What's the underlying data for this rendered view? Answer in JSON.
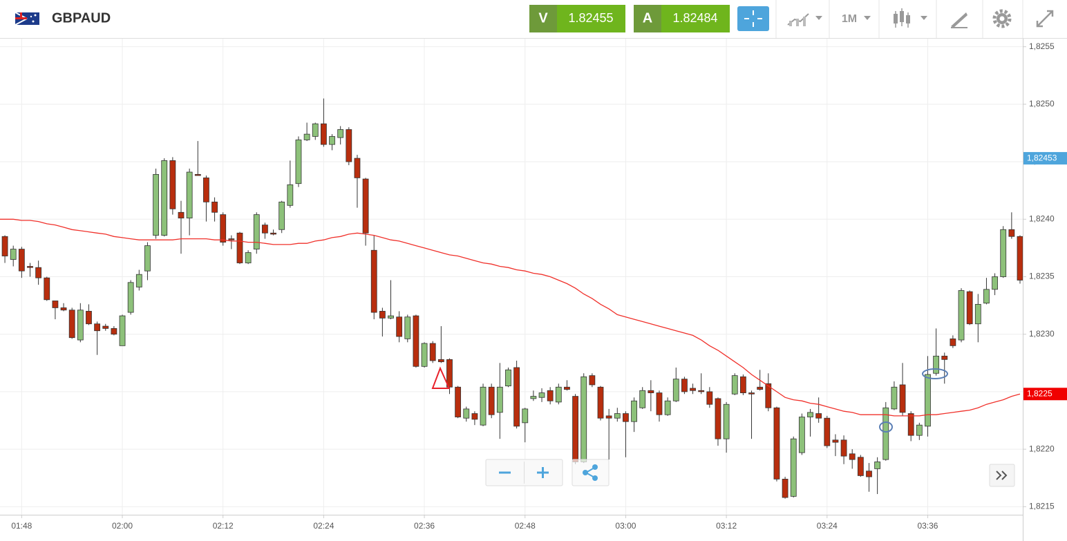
{
  "header": {
    "symbol": "GBPAUD",
    "sell_label": "V",
    "sell_price": "1.82455",
    "buy_label": "A",
    "buy_price": "1.82484",
    "timeframe": "1M"
  },
  "chart_data": {
    "type": "candlestick",
    "categories": [
      null,
      null,
      "01:48",
      null,
      null,
      null,
      null,
      null,
      null,
      null,
      null,
      null,
      null,
      null,
      "02:00",
      null,
      null,
      null,
      null,
      null,
      null,
      null,
      null,
      null,
      null,
      null,
      "02:12",
      null,
      null,
      null,
      null,
      null,
      null,
      null,
      null,
      null,
      null,
      null,
      "02:24",
      null,
      null,
      null,
      null,
      null,
      null,
      null,
      null,
      null,
      null,
      null,
      "02:36",
      null,
      null,
      null,
      null,
      null,
      null,
      null,
      null,
      null,
      null,
      null,
      "02:48",
      null,
      null,
      null,
      null,
      null,
      null,
      null,
      null,
      null,
      null,
      null,
      "03:00",
      null,
      null,
      null,
      null,
      null,
      null,
      null,
      null,
      null,
      null,
      null,
      "03:12",
      null,
      null,
      null,
      null,
      null,
      null,
      null,
      null,
      null,
      null,
      null,
      "03:24",
      null,
      null,
      null,
      null,
      null,
      null,
      null,
      null,
      null,
      null,
      null,
      "03:36",
      null,
      null,
      null,
      null,
      null,
      null,
      null,
      null,
      null,
      null,
      null
    ],
    "candles": {
      "open": [
        1.82385,
        1.82365,
        1.82374,
        1.82359,
        1.82358,
        1.82349,
        1.82329,
        1.82323,
        1.82321,
        1.82295,
        1.8232,
        1.82309,
        1.82307,
        1.82305,
        1.8229,
        1.82319,
        1.82341,
        1.82355,
        1.82386,
        1.82386,
        1.82451,
        1.82406,
        1.82401,
        1.82439,
        1.82436,
        1.82415,
        1.82404,
        1.82383,
        1.82388,
        1.82362,
        1.82374,
        1.82395,
        1.82388,
        1.82391,
        1.82412,
        1.82431,
        1.82469,
        1.82472,
        1.82483,
        1.82465,
        1.82471,
        1.82478,
        1.82453,
        1.82435,
        1.82373,
        1.8232,
        1.82314,
        1.82315,
        1.82296,
        1.82316,
        1.82272,
        1.82292,
        1.82278,
        1.82278,
        1.82254,
        1.82227,
        1.82231,
        1.82221,
        1.82254,
        1.82232,
        1.82255,
        1.82271,
        1.82223,
        1.82244,
        1.82245,
        1.82251,
        1.82241,
        1.82254,
        1.82246,
        1.82189,
        1.82264,
        1.82254,
        1.82229,
        1.82227,
        1.82231,
        1.82224,
        1.82236,
        1.82251,
        1.82249,
        1.8223,
        1.82242,
        1.82261,
        1.82253,
        1.82251,
        1.8225,
        1.82244,
        1.82209,
        1.82248,
        1.82263,
        1.82249,
        1.82254,
        1.82257,
        1.82236,
        1.82174,
        1.82159,
        1.82197,
        1.82228,
        1.82231,
        1.82227,
        1.82208,
        1.82208,
        1.82196,
        1.82193,
        1.82181,
        1.82183,
        1.82191,
        1.82235,
        1.82256,
        1.82231,
        1.82212,
        1.8222,
        1.82266,
        1.82281,
        1.82296,
        1.82295,
        1.82337,
        1.82309,
        1.82327,
        1.82339,
        1.8235,
        1.82391,
        1.82385
      ],
      "high": [
        1.82386,
        1.82377,
        1.82376,
        1.82362,
        1.82364,
        1.8235,
        1.82329,
        1.82327,
        1.82323,
        1.82327,
        1.82326,
        1.82311,
        1.82309,
        1.82307,
        1.82317,
        1.82347,
        1.82356,
        1.8238,
        1.82444,
        1.82453,
        1.82454,
        1.82416,
        1.82444,
        1.82468,
        1.82438,
        1.82419,
        1.82406,
        1.82386,
        1.82389,
        1.82373,
        1.82406,
        1.82397,
        1.82391,
        1.82416,
        1.82451,
        1.82472,
        1.82484,
        1.82484,
        1.82505,
        1.82474,
        1.82481,
        1.8248,
        1.82456,
        1.82436,
        1.82386,
        1.82323,
        1.82347,
        1.8232,
        1.82317,
        1.82317,
        1.82293,
        1.82294,
        1.82307,
        1.82279,
        1.82255,
        1.82237,
        1.82233,
        1.82257,
        1.82257,
        1.82275,
        1.82271,
        1.82277,
        1.82236,
        1.82251,
        1.82253,
        1.82254,
        1.82257,
        1.8226,
        1.82248,
        1.82266,
        1.82266,
        1.82255,
        1.82235,
        1.82236,
        1.82233,
        1.82245,
        1.82254,
        1.8226,
        1.82251,
        1.82245,
        1.82271,
        1.82263,
        1.82257,
        1.82266,
        1.82254,
        1.82245,
        1.82241,
        1.82266,
        1.82265,
        1.82251,
        1.82269,
        1.82266,
        1.82237,
        1.82176,
        1.82211,
        1.82231,
        1.82235,
        1.82245,
        1.82229,
        1.82213,
        1.82212,
        1.822,
        1.82195,
        1.82188,
        1.82193,
        1.82241,
        1.82259,
        1.82275,
        1.82233,
        1.82223,
        1.82281,
        1.82305,
        1.82284,
        1.82299,
        1.8234,
        1.82338,
        1.82335,
        1.82349,
        1.82353,
        1.82394,
        1.82406,
        1.82386
      ],
      "low": [
        1.82362,
        1.82359,
        1.82349,
        1.8235,
        1.82343,
        1.82329,
        1.82313,
        1.8232,
        1.82296,
        1.82293,
        1.82308,
        1.82282,
        1.82303,
        1.82299,
        1.8229,
        1.82317,
        1.82338,
        1.82347,
        1.82383,
        1.82385,
        1.82404,
        1.8237,
        1.82386,
        1.82438,
        1.82398,
        1.82398,
        1.82377,
        1.82374,
        1.82361,
        1.82361,
        1.8237,
        1.82383,
        1.82386,
        1.82388,
        1.8241,
        1.82428,
        1.82468,
        1.82469,
        1.82463,
        1.8246,
        1.82465,
        1.82447,
        1.8241,
        1.82377,
        1.82313,
        1.82298,
        1.82313,
        1.82293,
        1.82293,
        1.82271,
        1.82271,
        1.82275,
        1.82275,
        1.82248,
        1.82227,
        1.82224,
        1.82221,
        1.8222,
        1.82227,
        1.82209,
        1.82254,
        1.82218,
        1.82206,
        1.82242,
        1.82241,
        1.82239,
        1.82239,
        1.82251,
        1.82187,
        1.82188,
        1.82254,
        1.82225,
        1.82191,
        1.82224,
        1.82193,
        1.82215,
        1.82235,
        1.82233,
        1.82224,
        1.82229,
        1.82241,
        1.82248,
        1.82248,
        1.82248,
        1.82236,
        1.82203,
        1.82197,
        1.82247,
        1.82247,
        1.82209,
        1.82251,
        1.82233,
        1.82172,
        1.82157,
        1.82158,
        1.82195,
        1.82211,
        1.82223,
        1.82201,
        1.82194,
        1.82187,
        1.82183,
        1.82176,
        1.82163,
        1.82161,
        1.8219,
        1.82234,
        1.82229,
        1.82207,
        1.82208,
        1.82211,
        1.82264,
        1.82257,
        1.82288,
        1.82293,
        1.82308,
        1.82293,
        1.82326,
        1.82334,
        1.82349,
        1.82383,
        1.82344
      ],
      "close": [
        1.82368,
        1.82374,
        1.82355,
        1.82358,
        1.82349,
        1.8233,
        1.82323,
        1.82321,
        1.82297,
        1.82321,
        1.82309,
        1.82303,
        1.82305,
        1.823,
        1.82316,
        1.82345,
        1.82352,
        1.82377,
        1.82439,
        1.82451,
        1.82409,
        1.82401,
        1.82441,
        1.82438,
        1.82415,
        1.82406,
        1.8238,
        1.82382,
        1.82362,
        1.82371,
        1.82404,
        1.82388,
        1.82387,
        1.82415,
        1.8243,
        1.82469,
        1.82474,
        1.82483,
        1.82465,
        1.82472,
        1.82478,
        1.8245,
        1.82436,
        1.82388,
        1.82319,
        1.82314,
        1.82316,
        1.82298,
        1.82315,
        1.82272,
        1.82292,
        1.82277,
        1.82276,
        1.82254,
        1.82228,
        1.82235,
        1.82226,
        1.82254,
        1.8223,
        1.82254,
        1.82269,
        1.8222,
        1.82235,
        1.82246,
        1.82249,
        1.82242,
        1.82254,
        1.82252,
        1.82189,
        1.82263,
        1.82256,
        1.82227,
        1.82227,
        1.82231,
        1.82224,
        1.82242,
        1.82251,
        1.82249,
        1.8223,
        1.82242,
        1.82261,
        1.8225,
        1.82251,
        1.8225,
        1.82239,
        1.82209,
        1.82239,
        1.82264,
        1.82249,
        1.82248,
        1.82252,
        1.82236,
        1.82174,
        1.82158,
        1.82209,
        1.82228,
        1.82232,
        1.82227,
        1.82203,
        1.82206,
        1.82194,
        1.82191,
        1.82177,
        1.82176,
        1.82189,
        1.82236,
        1.82254,
        1.82232,
        1.82212,
        1.82221,
        1.82265,
        1.82281,
        1.82278,
        1.8229,
        1.82338,
        1.82309,
        1.82326,
        1.82339,
        1.8235,
        1.82391,
        1.82385,
        1.82347
      ],
      "up_color": "#8dc17a",
      "down_color": "#b82e0e"
    },
    "moving_average": {
      "color": "#f0302a",
      "values": [
        1.824,
        1.824,
        1.82399,
        1.82399,
        1.82398,
        1.82396,
        1.82395,
        1.82393,
        1.82391,
        1.8239,
        1.82389,
        1.82388,
        1.82387,
        1.82385,
        1.82384,
        1.82383,
        1.82382,
        1.82382,
        1.82382,
        1.82382,
        1.82382,
        1.82383,
        1.82383,
        1.82383,
        1.82383,
        1.82382,
        1.82382,
        1.82381,
        1.82381,
        1.8238,
        1.8238,
        1.82379,
        1.82378,
        1.82378,
        1.82378,
        1.82379,
        1.82379,
        1.82381,
        1.82382,
        1.82384,
        1.82385,
        1.82387,
        1.82388,
        1.82387,
        1.82386,
        1.82384,
        1.82382,
        1.82381,
        1.82379,
        1.82377,
        1.82375,
        1.82373,
        1.82371,
        1.82369,
        1.82368,
        1.82366,
        1.82364,
        1.82362,
        1.82361,
        1.82359,
        1.82358,
        1.82356,
        1.82355,
        1.82353,
        1.82352,
        1.8235,
        1.82347,
        1.82344,
        1.8234,
        1.82335,
        1.82331,
        1.82326,
        1.82322,
        1.82317,
        1.82315,
        1.82313,
        1.82311,
        1.82309,
        1.82307,
        1.82305,
        1.82303,
        1.82301,
        1.82299,
        1.82295,
        1.8229,
        1.82286,
        1.82281,
        1.82276,
        1.82271,
        1.82265,
        1.8226,
        1.82255,
        1.8225,
        1.82245,
        1.82243,
        1.82242,
        1.8224,
        1.82239,
        1.82237,
        1.82235,
        1.82233,
        1.82232,
        1.8223,
        1.8223,
        1.8223,
        1.8223,
        1.82229,
        1.82229,
        1.82229,
        1.82229,
        1.8223,
        1.8223,
        1.82231,
        1.82232,
        1.82233,
        1.82234,
        1.82236,
        1.82239,
        1.82241,
        1.82243,
        1.82246,
        1.82248
      ]
    },
    "ylim": [
      1.82143,
      1.82557
    ],
    "yticks": [
      {
        "value": 1.8255,
        "label": "1,8255"
      },
      {
        "value": 1.825,
        "label": "1,8250"
      },
      {
        "value": 1.8245,
        "label": "1,8245"
      },
      {
        "value": 1.824,
        "label": "1,8240"
      },
      {
        "value": 1.8235,
        "label": "1,8235"
      },
      {
        "value": 1.823,
        "label": "1,8230"
      },
      {
        "value": 1.8225,
        "label": "1,8225"
      },
      {
        "value": 1.822,
        "label": "1,8220"
      },
      {
        "value": 1.8215,
        "label": "1,8215"
      }
    ],
    "price_labels": [
      {
        "value": 1.82453,
        "label": "1,82453",
        "color": "#4ea5dc"
      },
      {
        "value": 1.82248,
        "label": "1,8225",
        "color": "#f00000"
      }
    ],
    "grid": true
  }
}
